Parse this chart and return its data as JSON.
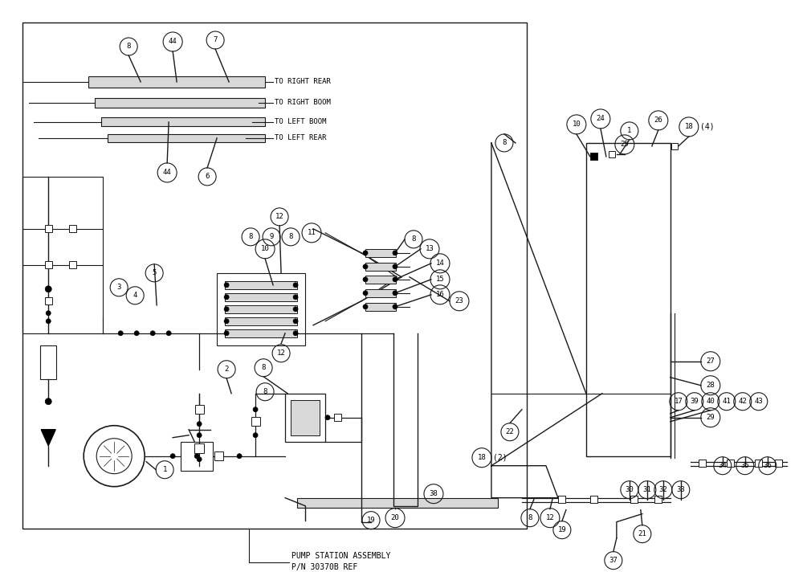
{
  "bg_color": "#ffffff",
  "line_color": "#1a1a1a",
  "gray_fill": "#b8b8b8",
  "light_gray": "#d8d8d8",
  "tube_labels": [
    "TO RIGHT REAR",
    "TO RIGHT BOOM",
    "TO LEFT BOOM",
    "TO LEFT REAR"
  ],
  "pump_station_text": [
    "PUMP STATION ASSEMBLY",
    "P/N 30370B REF"
  ]
}
